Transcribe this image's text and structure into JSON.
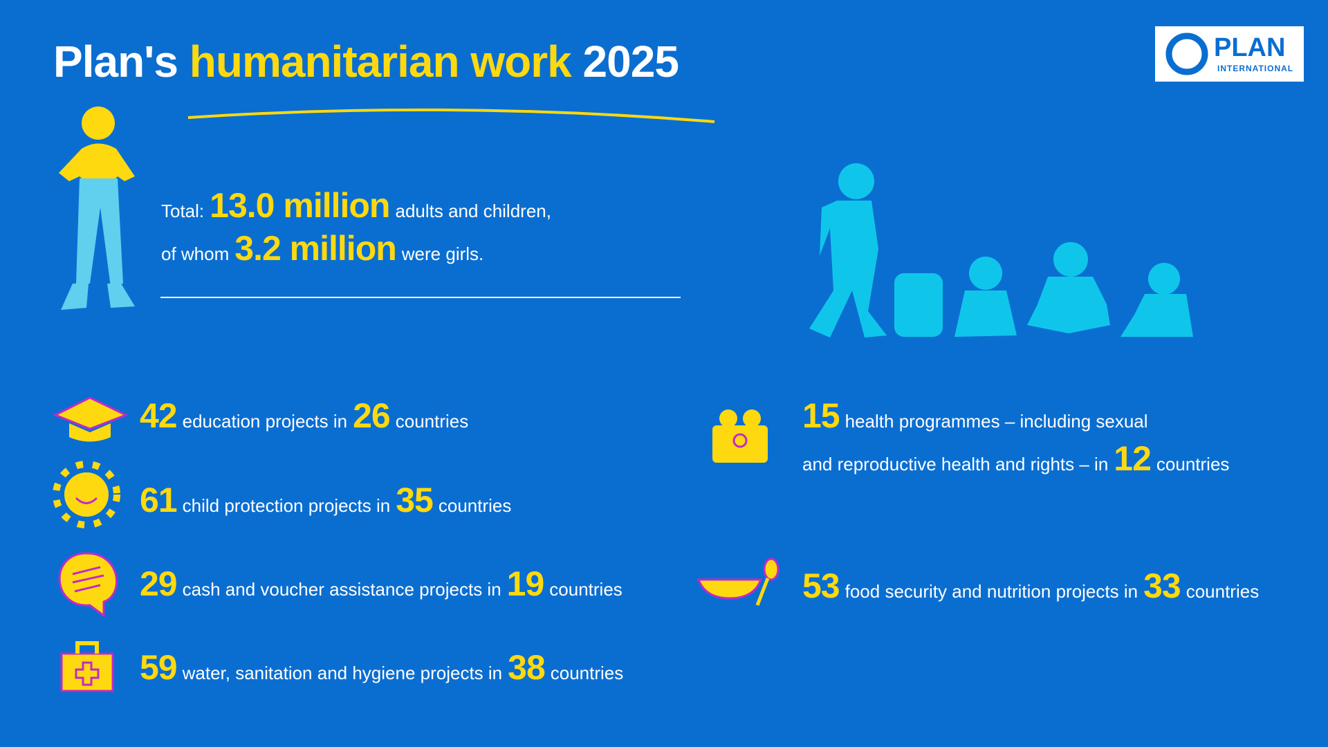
{
  "header": {
    "title": {
      "lead": "Plan's",
      "highlight": "humanitarian work",
      "year": "2025"
    },
    "logo": {
      "name": "PLAN",
      "sub": "INTERNATIONAL"
    }
  },
  "total": {
    "line1": {
      "before": "Total:",
      "figure": "13.0 million",
      "after": "adults and children,"
    },
    "line2": {
      "before": "of whom",
      "figure": "3.2 million",
      "after": "were girls."
    }
  },
  "items": [
    {
      "count": 42,
      "text": "education projects in",
      "countries": 26,
      "unit": "countries"
    },
    {
      "count": 61,
      "text": "child protection projects in",
      "countries": 35,
      "unit": "countries"
    },
    {
      "count": 29,
      "text": "cash and voucher assistance projects in",
      "countries": 19,
      "unit": "countries"
    },
    {
      "count": 59,
      "text": "water, sanitation and hygiene projects in",
      "countries": 38,
      "unit": "countries"
    },
    {
      "count": 15,
      "text": "health programmes – including sexual",
      "text2": "and reproductive health and rights – in",
      "countries": 12,
      "unit": "countries"
    },
    {
      "count": 53,
      "text": "food security and nutrition projects in",
      "countries": 33,
      "unit": "countries"
    }
  ]
}
